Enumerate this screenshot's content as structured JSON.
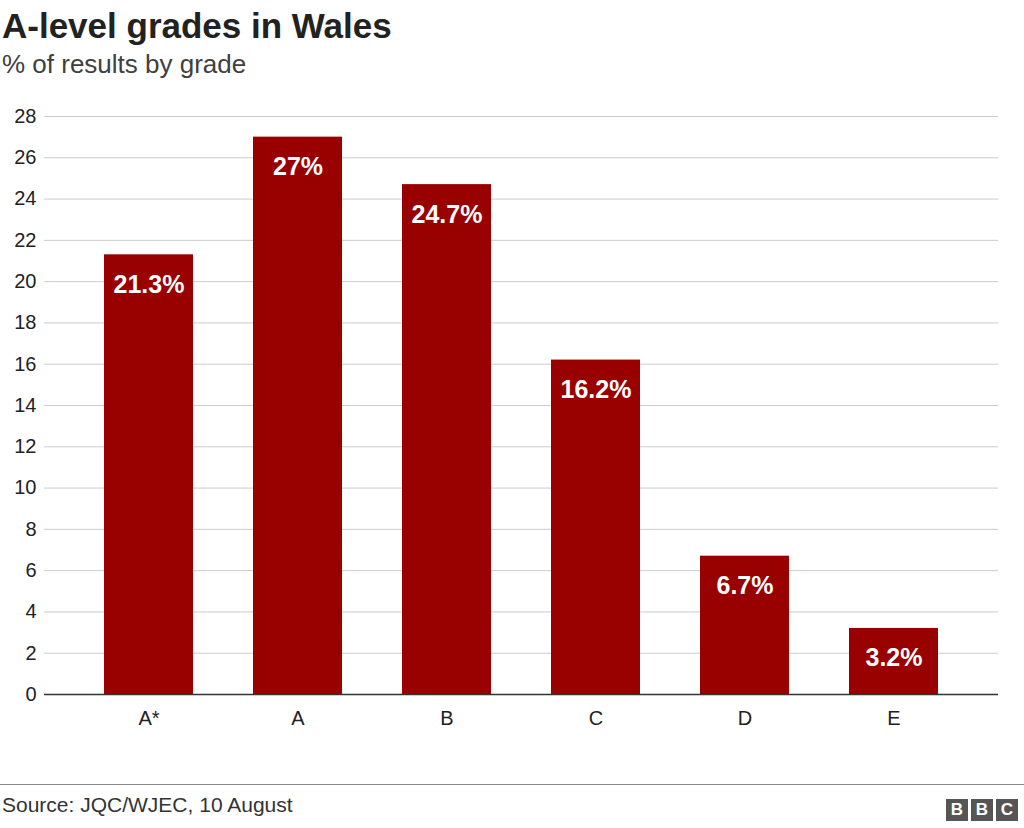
{
  "chart_data": {
    "type": "bar",
    "title": "A-level grades in Wales",
    "subtitle": "% of results by grade",
    "source": "Source: JQC/WJEC, 10 August",
    "logo": "BBC",
    "categories": [
      "A*",
      "A",
      "B",
      "C",
      "D",
      "E"
    ],
    "values": [
      21.3,
      27,
      24.7,
      16.2,
      6.7,
      3.2
    ],
    "value_labels": [
      "21.3%",
      "27%",
      "24.7%",
      "16.2%",
      "6.7%",
      "3.2%"
    ],
    "color": "#990000",
    "ylim": [
      0,
      28
    ],
    "yticks": [
      0,
      2,
      4,
      6,
      8,
      10,
      12,
      14,
      16,
      18,
      20,
      22,
      24,
      26,
      28
    ],
    "grid": true,
    "data_labels": true
  }
}
